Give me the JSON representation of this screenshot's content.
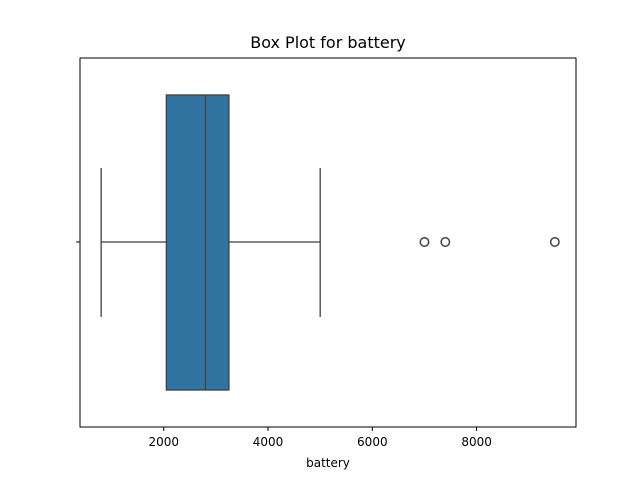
{
  "chart_data": {
    "type": "box",
    "title": "Box Plot for battery",
    "xlabel": "battery",
    "ylabel": "",
    "xlim": [
      394,
      9906
    ],
    "xticks": [
      2000,
      4000,
      6000,
      8000
    ],
    "grid": false,
    "series": [
      {
        "stats": {
          "whisker_low": 800,
          "q1": 2050,
          "median": 2800,
          "q3": 3250,
          "whisker_high": 5000
        },
        "outliers": [
          7000,
          7400,
          9500
        ],
        "color": "#3274a1"
      }
    ]
  }
}
